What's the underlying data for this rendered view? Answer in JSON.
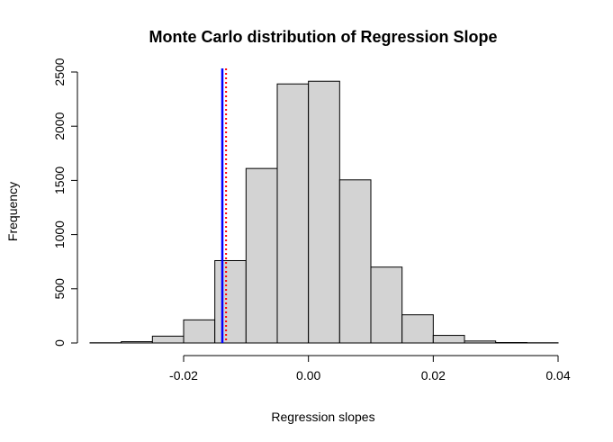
{
  "chart_data": {
    "type": "histogram",
    "title": "Monte Carlo distribution of Regression Slope",
    "xlabel": "Regression slopes",
    "ylabel": "Frequency",
    "xlim": [
      -0.035,
      0.04
    ],
    "ylim": [
      0,
      2500
    ],
    "x_ticks": [
      -0.02,
      0.0,
      0.02,
      0.04
    ],
    "x_tick_labels": [
      "-0.02",
      "0.00",
      "0.02",
      "0.04"
    ],
    "y_ticks": [
      0,
      500,
      1000,
      1500,
      2000,
      2500
    ],
    "y_tick_labels": [
      "0",
      "500",
      "1000",
      "1500",
      "2000",
      "2500"
    ],
    "bin_edges": [
      -0.035,
      -0.03,
      -0.025,
      -0.02,
      -0.015,
      -0.01,
      -0.005,
      0.0,
      0.005,
      0.01,
      0.015,
      0.02,
      0.025,
      0.03,
      0.035,
      0.04
    ],
    "counts": [
      2,
      12,
      63,
      213,
      760,
      1610,
      2390,
      2415,
      1505,
      700,
      260,
      70,
      18,
      4,
      2
    ],
    "bar_fill": "#d3d3d3",
    "bar_stroke": "#000000",
    "vlines": [
      {
        "x": -0.0138,
        "color": "#0000ff",
        "style": "solid"
      },
      {
        "x": -0.0132,
        "color": "#ff0000",
        "style": "dotted"
      }
    ],
    "grid": false,
    "legend": "none"
  }
}
